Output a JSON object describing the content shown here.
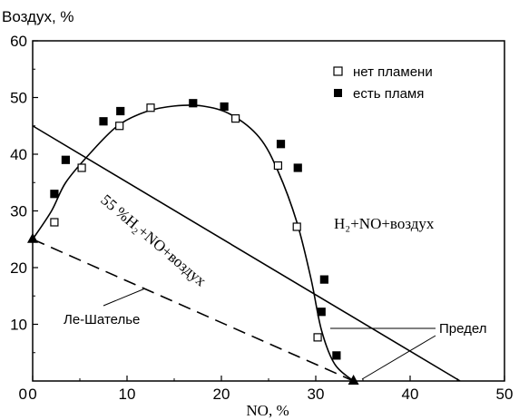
{
  "chart_data": {
    "type": "scatter",
    "title": "",
    "ylabel": "Воздух, %",
    "xlabel": "NO, %",
    "xlim": [
      0,
      50
    ],
    "ylim": [
      0,
      60
    ],
    "xticks": [
      "0",
      "10",
      "20",
      "30",
      "40",
      "50"
    ],
    "yticks": [
      "10",
      "20",
      "30",
      "40",
      "50",
      "60"
    ],
    "grid": false,
    "legend": {
      "position": "top-right",
      "entries": [
        {
          "label": "нет пламени",
          "marker": "open-square"
        },
        {
          "label": "есть пламя",
          "marker": "filled-square"
        }
      ]
    },
    "series": [
      {
        "name": "нет пламени",
        "marker": "open-square",
        "points": [
          [
            2.3,
            28
          ],
          [
            5.2,
            37.6
          ],
          [
            9.2,
            45
          ],
          [
            12.5,
            48.2
          ],
          [
            21.5,
            46.3
          ],
          [
            26,
            38
          ],
          [
            28,
            27.2
          ],
          [
            30.2,
            7.7
          ]
        ]
      },
      {
        "name": "есть пламя",
        "marker": "filled-square",
        "points": [
          [
            2.3,
            33
          ],
          [
            3.5,
            39
          ],
          [
            7.5,
            45.8
          ],
          [
            9.3,
            47.6
          ],
          [
            17,
            49
          ],
          [
            20.3,
            48.4
          ],
          [
            26.3,
            41.8
          ],
          [
            28.1,
            37.6
          ],
          [
            30.9,
            17.9
          ],
          [
            30.6,
            12.2
          ],
          [
            32.2,
            4.5
          ]
        ]
      }
    ],
    "curve": {
      "description": "flammability boundary",
      "points": [
        [
          0,
          25
        ],
        [
          2,
          30
        ],
        [
          3.5,
          35
        ],
        [
          6,
          40
        ],
        [
          9,
          45
        ],
        [
          12,
          47.5
        ],
        [
          15,
          48.5
        ],
        [
          18,
          48.5
        ],
        [
          21,
          47
        ],
        [
          24,
          43
        ],
        [
          26,
          37
        ],
        [
          28,
          28
        ],
        [
          29.5,
          18
        ],
        [
          30.6,
          9
        ],
        [
          32,
          3
        ],
        [
          34,
          0
        ]
      ]
    },
    "lines": [
      {
        "id": "solid-line",
        "style": "solid",
        "points": [
          [
            0,
            45
          ],
          [
            45.3,
            0
          ]
        ]
      },
      {
        "id": "dashed-line",
        "style": "dashed",
        "points": [
          [
            0,
            25
          ],
          [
            34,
            0
          ]
        ]
      }
    ],
    "triangles": [
      [
        0,
        25
      ],
      [
        34,
        0
      ]
    ],
    "annotations": {
      "line_label": "55 %H₂+NO+воздух",
      "region_label": "H₂+NO+воздух",
      "le_chatelier": "Ле-Шателье",
      "limit": "Предел"
    }
  }
}
